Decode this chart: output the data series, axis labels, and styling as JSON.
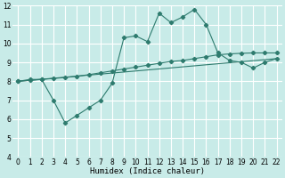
{
  "xlabel": "Humidex (Indice chaleur)",
  "ylabel": "",
  "bg_color": "#c8ebe8",
  "grid_color": "#ffffff",
  "line_color": "#2e7b6e",
  "xlim": [
    -0.5,
    22.5
  ],
  "ylim": [
    4,
    12
  ],
  "yticks": [
    4,
    5,
    6,
    7,
    8,
    9,
    10,
    11,
    12
  ],
  "xticks": [
    0,
    1,
    2,
    3,
    4,
    5,
    6,
    7,
    8,
    9,
    10,
    11,
    12,
    13,
    14,
    15,
    16,
    17,
    18,
    19,
    20,
    21,
    22
  ],
  "line1_x": [
    0,
    1,
    2,
    3,
    4,
    5,
    6,
    7,
    8,
    9,
    10,
    11,
    12,
    13,
    14,
    15,
    16,
    17,
    18,
    19,
    20,
    21,
    22
  ],
  "line1_y": [
    8.0,
    8.1,
    8.1,
    7.0,
    5.8,
    6.2,
    6.6,
    7.0,
    7.9,
    10.3,
    10.4,
    10.1,
    11.6,
    11.1,
    11.4,
    11.8,
    11.0,
    9.5,
    9.1,
    9.0,
    8.7,
    9.0,
    9.2
  ],
  "line2_x": [
    0,
    1,
    2,
    3,
    4,
    5,
    6,
    7,
    8,
    9,
    10,
    11,
    12,
    13,
    14,
    15,
    16,
    17,
    18,
    19,
    20,
    21,
    22
  ],
  "line2_y": [
    8.0,
    8.05,
    8.1,
    8.15,
    8.2,
    8.27,
    8.35,
    8.45,
    8.55,
    8.65,
    8.75,
    8.85,
    8.95,
    9.05,
    9.1,
    9.2,
    9.3,
    9.4,
    9.45,
    9.48,
    9.5,
    9.5,
    9.5
  ],
  "line3_x": [
    0,
    22
  ],
  "line3_y": [
    8.0,
    9.2
  ]
}
